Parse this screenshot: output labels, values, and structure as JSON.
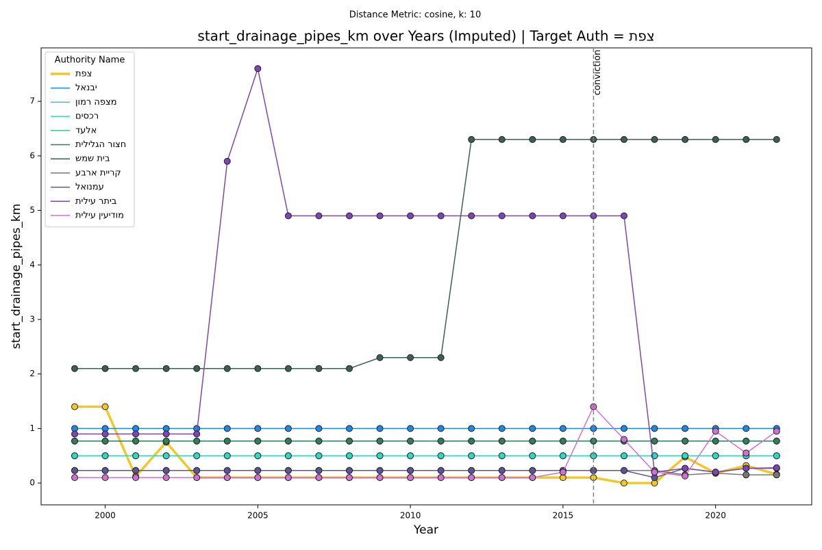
{
  "chart_data": {
    "type": "line",
    "suptitle": "Distance Metric: cosine, k: 10",
    "title": "start_drainage_pipes_km over Years (Imputed) | Target Auth = צפת",
    "xlabel": "Year",
    "ylabel": "start_drainage_pipes_km",
    "legend_title": "Authority Name",
    "legend": "upper left",
    "x": [
      1999,
      2000,
      2001,
      2002,
      2003,
      2004,
      2005,
      2006,
      2007,
      2008,
      2009,
      2010,
      2011,
      2012,
      2013,
      2014,
      2015,
      2016,
      2017,
      2018,
      2019,
      2020,
      2021,
      2022
    ],
    "xlim": [
      1997.9,
      2023.15
    ],
    "xticks": [
      2000,
      2005,
      2010,
      2015,
      2020
    ],
    "ylim": [
      -0.4,
      7.98
    ],
    "yticks": [
      0,
      1,
      2,
      3,
      4,
      5,
      6,
      7
    ],
    "vline": {
      "x": 2016,
      "label": "conviction",
      "color": "#808080"
    },
    "series": [
      {
        "name": "צפת",
        "color": "#f0c929",
        "width": 3.5,
        "values": [
          1.4,
          1.4,
          0.12,
          0.75,
          0.1,
          0.1,
          0.1,
          0.1,
          0.1,
          0.1,
          0.1,
          0.1,
          0.1,
          0.1,
          0.1,
          0.1,
          0.1,
          0.1,
          0,
          0,
          0.48,
          0.18,
          0.32,
          0.16
        ]
      },
      {
        "name": "יבנאל",
        "color": "#1e88e5",
        "width": 1.5,
        "values": [
          1,
          1,
          1,
          1,
          1,
          1,
          1,
          1,
          1,
          1,
          1,
          1,
          1,
          1,
          1,
          1,
          1,
          1,
          1,
          1,
          1,
          1,
          1,
          1
        ]
      },
      {
        "name": "מצפה רמון",
        "color": "#26c6da",
        "width": 1.5,
        "values": [
          0.5,
          0.5,
          0.5,
          0.5,
          0.5,
          0.5,
          0.5,
          0.5,
          0.5,
          0.5,
          0.5,
          0.5,
          0.5,
          0.5,
          0.5,
          0.5,
          0.5,
          0.5,
          0.5,
          0.5,
          0.5,
          0.5,
          0.5,
          0.5
        ]
      },
      {
        "name": "רכסים",
        "color": "#2ed9c3",
        "width": 1.5,
        "values": [
          0.5,
          0.5,
          0.5,
          0.5,
          0.5,
          0.5,
          0.5,
          0.5,
          0.5,
          0.5,
          0.5,
          0.5,
          0.5,
          0.5,
          0.5,
          0.5,
          0.5,
          0.5,
          0.5,
          0.5,
          0.5,
          0.5,
          0.5,
          0.5
        ]
      },
      {
        "name": "אלעד",
        "color": "#3cc995",
        "width": 1.5,
        "values": [
          0.77,
          0.77,
          0.77,
          0.77,
          0.77,
          0.77,
          0.77,
          0.77,
          0.77,
          0.77,
          0.77,
          0.77,
          0.77,
          0.77,
          0.77,
          0.77,
          0.77,
          0.77,
          0.77,
          0.77,
          0.77,
          0.77,
          0.77,
          0.77
        ]
      },
      {
        "name": "חצור הגלילית",
        "color": "#2e7d5b",
        "width": 1.5,
        "values": [
          0.77,
          0.77,
          0.77,
          0.77,
          0.77,
          0.77,
          0.77,
          0.77,
          0.77,
          0.77,
          0.77,
          0.77,
          0.77,
          0.77,
          0.77,
          0.77,
          0.77,
          0.77,
          0.77,
          0.77,
          0.77,
          0.77,
          0.77,
          0.77
        ]
      },
      {
        "name": "בית שמש",
        "color": "#3d5e55",
        "width": 1.5,
        "values": [
          2.1,
          2.1,
          2.1,
          2.1,
          2.1,
          2.1,
          2.1,
          2.1,
          2.1,
          2.1,
          2.3,
          2.3,
          2.3,
          6.3,
          6.3,
          6.3,
          6.3,
          6.3,
          6.3,
          6.3,
          6.3,
          6.3,
          6.3,
          6.3
        ]
      },
      {
        "name": "קריית ארבע",
        "color": "#777777",
        "width": 1.5,
        "values": [
          0.23,
          0.23,
          0.23,
          0.23,
          0.23,
          0.23,
          0.23,
          0.23,
          0.23,
          0.23,
          0.23,
          0.23,
          0.23,
          0.23,
          0.23,
          0.23,
          0.23,
          0.23,
          0.23,
          0.23,
          0.15,
          0.18,
          0.15,
          0.15
        ]
      },
      {
        "name": "עמנואל",
        "color": "#5c5499",
        "width": 1.5,
        "values": [
          0.23,
          0.23,
          0.23,
          0.23,
          0.23,
          0.23,
          0.23,
          0.23,
          0.23,
          0.23,
          0.23,
          0.23,
          0.23,
          0.23,
          0.23,
          0.23,
          0.23,
          0.23,
          0.23,
          0.1,
          0.27,
          0.2,
          0.27,
          0.27
        ]
      },
      {
        "name": "ביתר עילית",
        "color": "#7e45b0",
        "width": 1.5,
        "values": [
          0.9,
          0.9,
          0.9,
          0.9,
          0.9,
          5.9,
          7.6,
          4.9,
          4.9,
          4.9,
          4.9,
          4.9,
          4.9,
          4.9,
          4.9,
          4.9,
          4.9,
          4.9,
          4.9,
          0.2,
          0.27,
          0.2,
          0.27,
          0.28
        ]
      },
      {
        "name": "מודיעין עילית",
        "color": "#d070d0",
        "width": 1.5,
        "values": [
          0.1,
          0.1,
          0.1,
          0.1,
          0.1,
          0.1,
          0.1,
          0.1,
          0.1,
          0.1,
          0.1,
          0.1,
          0.1,
          0.1,
          0.1,
          0.1,
          0.2,
          1.4,
          0.8,
          0.2,
          0.13,
          0.95,
          0.55,
          0.95
        ]
      }
    ]
  }
}
